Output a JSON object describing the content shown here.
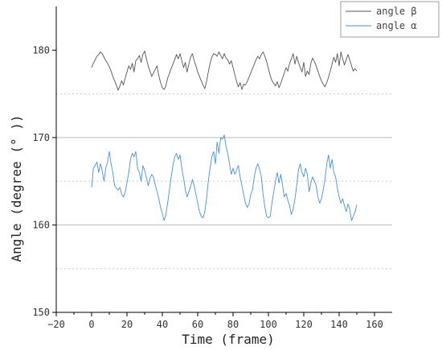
{
  "chart_data": {
    "type": "line",
    "xlabel": "Time (frame)",
    "ylabel": "Angle (degree (° ))",
    "xlim": [
      -20,
      170
    ],
    "ylim": [
      150,
      185
    ],
    "xticks": [
      -20,
      0,
      20,
      40,
      60,
      80,
      100,
      120,
      140,
      160
    ],
    "yticks": [
      150,
      160,
      170,
      180
    ],
    "major_grid": [
      160,
      170
    ],
    "minor_grid": [
      155,
      165,
      175
    ],
    "legend_position": "top-right",
    "series": [
      {
        "name": "angle β",
        "color": "#555555",
        "x": [
          0,
          1,
          2,
          3,
          4,
          5,
          6,
          7,
          8,
          9,
          10,
          11,
          12,
          13,
          14,
          15,
          16,
          17,
          18,
          19,
          20,
          21,
          22,
          23,
          24,
          25,
          26,
          27,
          28,
          29,
          30,
          31,
          32,
          33,
          34,
          35,
          36,
          37,
          38,
          39,
          40,
          41,
          42,
          43,
          44,
          45,
          46,
          47,
          48,
          49,
          50,
          51,
          52,
          53,
          54,
          55,
          56,
          57,
          58,
          59,
          60,
          61,
          62,
          63,
          64,
          65,
          66,
          67,
          68,
          69,
          70,
          71,
          72,
          73,
          74,
          75,
          76,
          77,
          78,
          79,
          80,
          81,
          82,
          83,
          84,
          85,
          86,
          87,
          88,
          89,
          90,
          91,
          92,
          93,
          94,
          95,
          96,
          97,
          98,
          99,
          100,
          101,
          102,
          103,
          104,
          105,
          106,
          107,
          108,
          109,
          110,
          111,
          112,
          113,
          114,
          115,
          116,
          117,
          118,
          119,
          120,
          121,
          122,
          123,
          124,
          125,
          126,
          127,
          128,
          129,
          130,
          131,
          132,
          133,
          134,
          135,
          136,
          137,
          138,
          139,
          140,
          141,
          142,
          143,
          144,
          145,
          146,
          147,
          148,
          149,
          150
        ],
        "values": [
          178.0,
          178.5,
          178.9,
          179.3,
          179.5,
          179.8,
          179.6,
          179.2,
          178.8,
          178.5,
          178.1,
          177.6,
          177.0,
          176.5,
          176.0,
          175.4,
          175.9,
          176.5,
          176.0,
          176.8,
          177.5,
          178.2,
          177.8,
          178.5,
          177.5,
          178.8,
          179.0,
          179.4,
          178.6,
          179.5,
          179.9,
          179.0,
          178.2,
          177.6,
          177.0,
          177.4,
          177.8,
          178.2,
          177.1,
          176.3,
          175.7,
          175.5,
          175.9,
          176.8,
          177.3,
          177.9,
          178.4,
          178.9,
          179.5,
          179.0,
          179.6,
          178.8,
          178.0,
          178.6,
          177.5,
          178.4,
          179.2,
          179.6,
          178.8,
          178.2,
          177.5,
          177.0,
          176.5,
          176.0,
          175.6,
          176.4,
          177.5,
          178.5,
          179.2,
          179.6,
          179.5,
          179.3,
          179.8,
          179.4,
          179.0,
          179.6,
          179.1,
          178.9,
          178.4,
          178.8,
          178.0,
          177.2,
          176.4,
          175.8,
          176.3,
          175.5,
          176.1,
          176.0,
          176.4,
          176.9,
          177.4,
          177.9,
          178.4,
          178.9,
          179.3,
          179.0,
          179.5,
          179.8,
          179.3,
          178.7,
          177.9,
          177.1,
          176.5,
          176.2,
          175.9,
          176.4,
          175.7,
          176.2,
          176.8,
          177.4,
          178.0,
          177.6,
          178.5,
          179.0,
          179.6,
          178.4,
          179.3,
          178.6,
          178.0,
          177.5,
          178.6,
          177.0,
          177.6,
          177.2,
          178.5,
          179.1,
          178.7,
          178.2,
          177.6,
          177.0,
          176.5,
          176.1,
          175.8,
          176.3,
          176.9,
          177.6,
          178.4,
          179.2,
          178.6,
          179.6,
          178.2,
          179.8,
          179.0,
          178.3,
          178.9,
          179.5,
          178.9,
          178.2,
          177.6,
          177.9,
          177.6
        ]
      },
      {
        "name": "angle α",
        "color": "#4a90d9",
        "x": [
          0,
          1,
          2,
          3,
          4,
          5,
          6,
          7,
          8,
          9,
          10,
          11,
          12,
          13,
          14,
          15,
          16,
          17,
          18,
          19,
          20,
          21,
          22,
          23,
          24,
          25,
          26,
          27,
          28,
          29,
          30,
          31,
          32,
          33,
          34,
          35,
          36,
          37,
          38,
          39,
          40,
          41,
          42,
          43,
          44,
          45,
          46,
          47,
          48,
          49,
          50,
          51,
          52,
          53,
          54,
          55,
          56,
          57,
          58,
          59,
          60,
          61,
          62,
          63,
          64,
          65,
          66,
          67,
          68,
          69,
          70,
          71,
          72,
          73,
          74,
          75,
          76,
          77,
          78,
          79,
          80,
          81,
          82,
          83,
          84,
          85,
          86,
          87,
          88,
          89,
          90,
          91,
          92,
          93,
          94,
          95,
          96,
          97,
          98,
          99,
          100,
          101,
          102,
          103,
          104,
          105,
          106,
          107,
          108,
          109,
          110,
          111,
          112,
          113,
          114,
          115,
          116,
          117,
          118,
          119,
          120,
          121,
          122,
          123,
          124,
          125,
          126,
          127,
          128,
          129,
          130,
          131,
          132,
          133,
          134,
          135,
          136,
          137,
          138,
          139,
          140,
          141,
          142,
          143,
          144,
          145,
          146,
          147,
          148,
          149,
          150
        ],
        "values": [
          164.3,
          166.5,
          166.8,
          167.2,
          166.0,
          167.0,
          166.2,
          165.0,
          166.5,
          167.2,
          168.4,
          167.0,
          166.0,
          164.5,
          164.2,
          164.0,
          164.3,
          163.5,
          163.2,
          163.8,
          164.8,
          166.0,
          167.5,
          168.2,
          167.8,
          168.4,
          166.5,
          166.0,
          165.0,
          166.8,
          166.2,
          165.4,
          164.5,
          165.3,
          165.8,
          165.5,
          164.6,
          163.8,
          163.0,
          162.0,
          161.3,
          160.5,
          161.2,
          162.5,
          164.0,
          165.5,
          166.8,
          167.8,
          168.2,
          167.5,
          168.0,
          166.5,
          165.4,
          164.0,
          163.2,
          163.8,
          164.4,
          165.2,
          164.5,
          163.5,
          162.5,
          161.5,
          161.0,
          160.8,
          161.5,
          163.0,
          165.0,
          166.5,
          167.8,
          168.4,
          167.0,
          169.5,
          168.2,
          170.0,
          169.8,
          170.3,
          169.0,
          168.2,
          167.0,
          165.8,
          166.5,
          165.8,
          166.3,
          166.8,
          165.5,
          164.5,
          163.5,
          162.5,
          162.0,
          162.4,
          163.5,
          164.0,
          165.5,
          166.5,
          167.0,
          166.4,
          165.5,
          163.5,
          162.0,
          161.0,
          160.8,
          161.0,
          162.5,
          163.8,
          165.0,
          166.0,
          164.8,
          165.8,
          164.5,
          163.2,
          163.6,
          162.8,
          162.2,
          161.2,
          161.8,
          163.0,
          164.5,
          166.3,
          167.0,
          166.0,
          165.5,
          166.5,
          165.8,
          163.8,
          164.8,
          165.5,
          165.0,
          164.5,
          163.2,
          162.5,
          163.0,
          164.0,
          165.2,
          167.0,
          168.0,
          166.5,
          167.5,
          166.0,
          165.5,
          164.2,
          163.2,
          162.5,
          163.0,
          162.2,
          161.5,
          162.4,
          161.8,
          160.5,
          161.0,
          161.5,
          162.3
        ]
      }
    ]
  }
}
